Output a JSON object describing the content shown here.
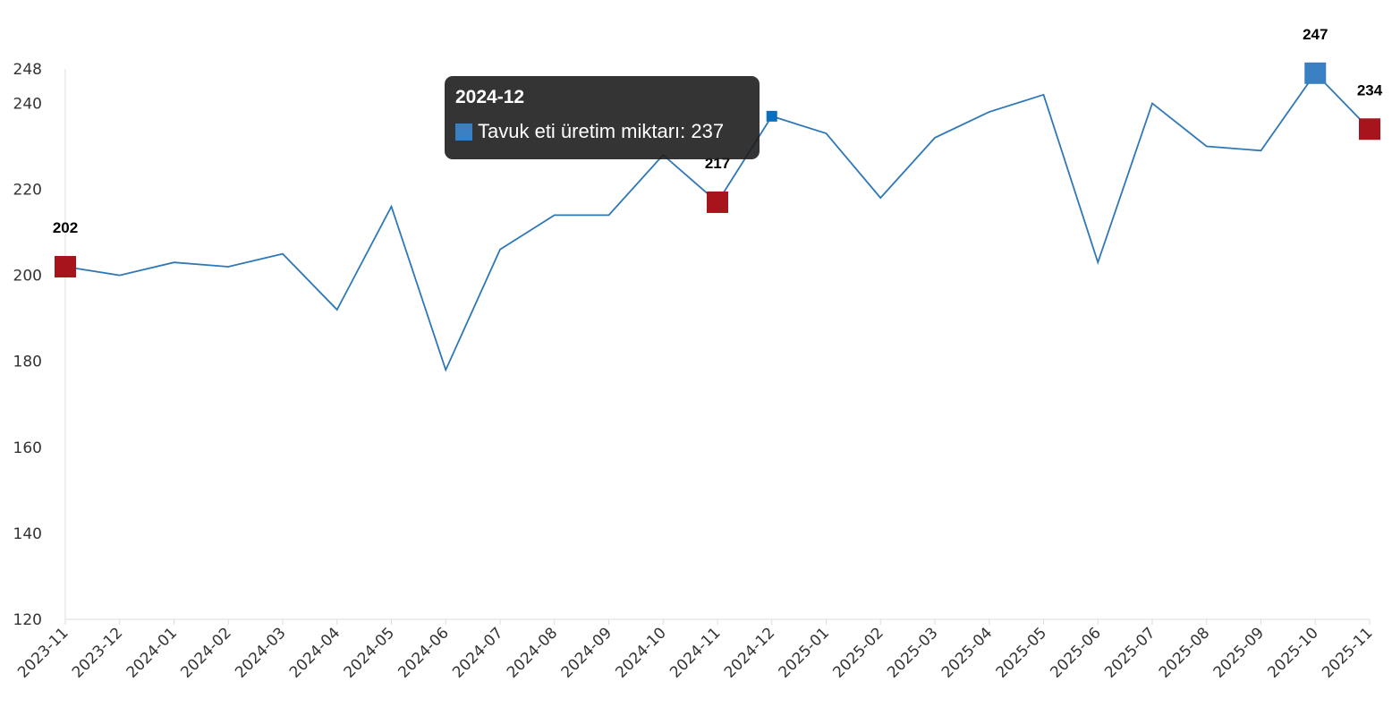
{
  "chart_data": {
    "type": "line",
    "title": "",
    "xlabel": "",
    "ylabel": "",
    "categories": [
      "2023-11",
      "2023-12",
      "2024-01",
      "2024-02",
      "2024-03",
      "2024-04",
      "2024-05",
      "2024-06",
      "2024-07",
      "2024-08",
      "2024-09",
      "2024-10",
      "2024-11",
      "2024-12",
      "2025-01",
      "2025-02",
      "2025-03",
      "2025-04",
      "2025-05",
      "2025-06",
      "2025-07",
      "2025-08",
      "2025-09",
      "2025-10",
      "2025-11"
    ],
    "series": [
      {
        "name": "Tavuk eti üretim miktarı",
        "color": "#2f78b7",
        "values": [
          202,
          200,
          203,
          202,
          205,
          192,
          216,
          178,
          206,
          214,
          214,
          228,
          217,
          237,
          233,
          218,
          232,
          238,
          242,
          203,
          240,
          230,
          229,
          247,
          234
        ]
      }
    ],
    "ylim": [
      120,
      248
    ],
    "yticks": [
      "120",
      "140",
      "160",
      "180",
      "200",
      "220",
      "240",
      "248"
    ],
    "grid": false,
    "legend": "none",
    "data_labels": [
      {
        "category": "2023-11",
        "text": "202",
        "marker_color": "#a8141b"
      },
      {
        "category": "2024-11",
        "text": "217",
        "marker_color": "#a8141b"
      },
      {
        "category": "2025-10",
        "text": "247",
        "marker_color": "#3a7fc1"
      },
      {
        "category": "2025-11",
        "text": "234",
        "marker_color": "#a8141b"
      }
    ],
    "tooltip": {
      "title": "2024-12",
      "series": "Tavuk eti üretim miktarı",
      "value_text": "Tavuk eti üretim miktarı: 237",
      "category": "2024-12"
    }
  }
}
